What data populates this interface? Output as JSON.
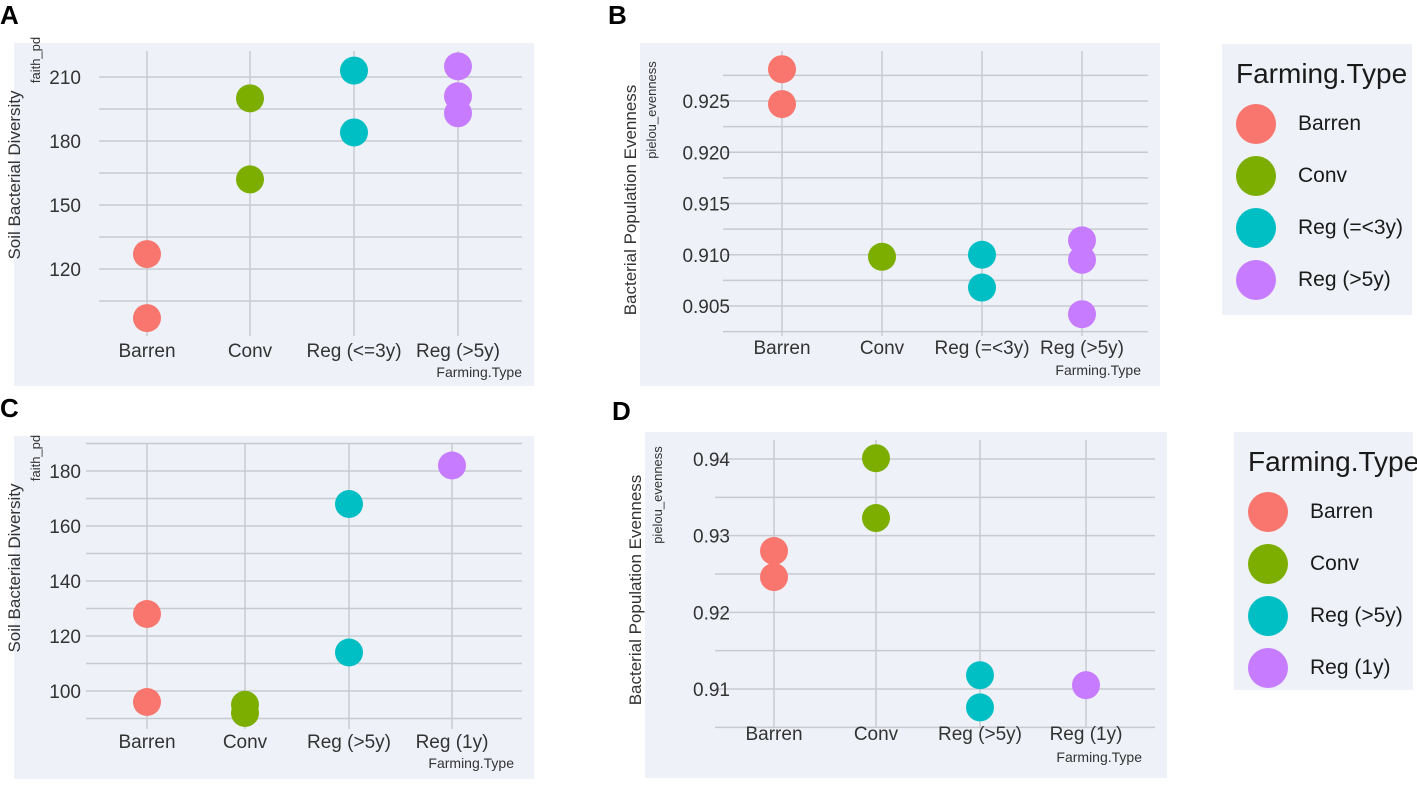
{
  "colors": {
    "Barren": "#f8766d",
    "Conv": "#7cae00",
    "Teal": "#00bfc4",
    "Purple": "#c77cff",
    "panel_bg": "#eef1f7",
    "grid": "#c7cad1"
  },
  "legends": [
    {
      "title": "Farming.Type",
      "items": [
        {
          "label": "Barren",
          "color": "#f8766d"
        },
        {
          "label": "Conv",
          "color": "#7cae00"
        },
        {
          "label": "Reg (=<3y)",
          "color": "#00bfc4"
        },
        {
          "label": "Reg (>5y)",
          "color": "#c77cff"
        }
      ]
    },
    {
      "title": "Farming.Type",
      "items": [
        {
          "label": "Barren",
          "color": "#f8766d"
        },
        {
          "label": "Conv",
          "color": "#7cae00"
        },
        {
          "label": "Reg (>5y)",
          "color": "#00bfc4"
        },
        {
          "label": "Reg (1y)",
          "color": "#c77cff"
        }
      ]
    }
  ],
  "chart_data": [
    {
      "panel_label": "A",
      "type": "scatter",
      "ylabel": "Soil Bacterial Diversity",
      "ylabel_small": "faith_pd",
      "xlabel": "Farming.Type",
      "categories": [
        "Barren",
        "Conv",
        "Reg (<=3y)",
        "Reg (>5y)"
      ],
      "colors": [
        "#f8766d",
        "#7cae00",
        "#00bfc4",
        "#c77cff"
      ],
      "ylim": [
        93,
        220
      ],
      "yticks": [
        120,
        150,
        180,
        210
      ],
      "ytick_labels": [
        "120",
        "150",
        "180",
        "210"
      ],
      "points": [
        {
          "cat": 0,
          "y": 127
        },
        {
          "cat": 0,
          "y": 97
        },
        {
          "cat": 1,
          "y": 200
        },
        {
          "cat": 1,
          "y": 162
        },
        {
          "cat": 2,
          "y": 213
        },
        {
          "cat": 2,
          "y": 184
        },
        {
          "cat": 3,
          "y": 215
        },
        {
          "cat": 3,
          "y": 201
        },
        {
          "cat": 3,
          "y": 193
        }
      ]
    },
    {
      "panel_label": "B",
      "type": "scatter",
      "ylabel": "Bacterial Population Evenness",
      "ylabel_small": "pielou_evenness",
      "xlabel": "Farming.Type",
      "categories": [
        "Barren",
        "Conv",
        "Reg (=<3y)",
        "Reg (>5y)"
      ],
      "colors": [
        "#f8766d",
        "#7cae00",
        "#00bfc4",
        "#c77cff"
      ],
      "ylim": [
        0.9037,
        0.9293
      ],
      "yticks": [
        0.905,
        0.91,
        0.915,
        0.92,
        0.925
      ],
      "ytick_labels": [
        "0.905",
        "0.910",
        "0.915",
        "0.920",
        "0.925"
      ],
      "points": [
        {
          "cat": 0,
          "y": 0.9281
        },
        {
          "cat": 0,
          "y": 0.9247
        },
        {
          "cat": 1,
          "y": 0.9098
        },
        {
          "cat": 2,
          "y": 0.91
        },
        {
          "cat": 2,
          "y": 0.9068
        },
        {
          "cat": 3,
          "y": 0.9114
        },
        {
          "cat": 3,
          "y": 0.9095
        },
        {
          "cat": 3,
          "y": 0.9042
        }
      ]
    },
    {
      "panel_label": "C",
      "type": "scatter",
      "ylabel": "Soil Bacterial Diversity",
      "ylabel_small": "faith_pd",
      "xlabel": "Farming.Type",
      "categories": [
        "Barren",
        "Conv",
        "Reg (>5y)",
        "Reg (1y)"
      ],
      "colors": [
        "#f8766d",
        "#7cae00",
        "#00bfc4",
        "#c77cff"
      ],
      "ylim": [
        88,
        187
      ],
      "yticks": [
        100,
        120,
        140,
        160,
        180
      ],
      "ytick_labels": [
        "100",
        "120",
        "140",
        "160",
        "180"
      ],
      "points": [
        {
          "cat": 0,
          "y": 128
        },
        {
          "cat": 0,
          "y": 96
        },
        {
          "cat": 1,
          "y": 95
        },
        {
          "cat": 1,
          "y": 92
        },
        {
          "cat": 2,
          "y": 168
        },
        {
          "cat": 2,
          "y": 114
        },
        {
          "cat": 3,
          "y": 182
        }
      ]
    },
    {
      "panel_label": "D",
      "type": "scatter",
      "ylabel": "Bacterial Population Evenness",
      "ylabel_small": "pielou_evenness",
      "xlabel": "Farming.Type",
      "categories": [
        "Barren",
        "Conv",
        "Reg (>5y)",
        "Reg (1y)"
      ],
      "colors": [
        "#f8766d",
        "#7cae00",
        "#00bfc4",
        "#c77cff"
      ],
      "ylim": [
        0.9057,
        0.9423
      ],
      "yticks": [
        0.91,
        0.92,
        0.93,
        0.94
      ],
      "ytick_labels": [
        "0.91",
        "0.92",
        "0.93",
        "0.94"
      ],
      "points": [
        {
          "cat": 0,
          "y": 0.928
        },
        {
          "cat": 0,
          "y": 0.9246
        },
        {
          "cat": 1,
          "y": 0.9401
        },
        {
          "cat": 1,
          "y": 0.9323
        },
        {
          "cat": 2,
          "y": 0.9118
        },
        {
          "cat": 2,
          "y": 0.9076
        },
        {
          "cat": 3,
          "y": 0.9105
        }
      ]
    }
  ]
}
